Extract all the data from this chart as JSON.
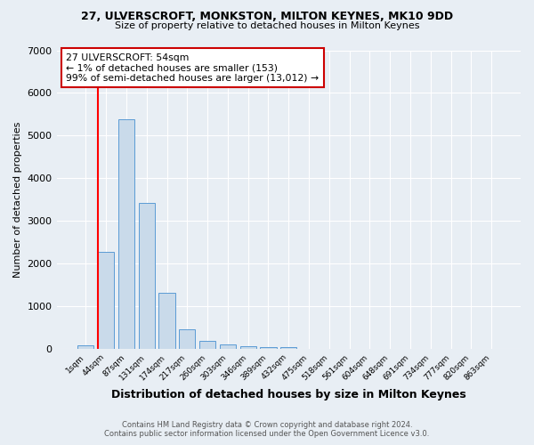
{
  "title1": "27, ULVERSCROFT, MONKSTON, MILTON KEYNES, MK10 9DD",
  "title2": "Size of property relative to detached houses in Milton Keynes",
  "xlabel": "Distribution of detached houses by size in Milton Keynes",
  "ylabel": "Number of detached properties",
  "categories": [
    "1sqm",
    "44sqm",
    "87sqm",
    "131sqm",
    "174sqm",
    "217sqm",
    "260sqm",
    "303sqm",
    "346sqm",
    "389sqm",
    "432sqm",
    "475sqm",
    "518sqm",
    "561sqm",
    "604sqm",
    "648sqm",
    "691sqm",
    "734sqm",
    "777sqm",
    "820sqm",
    "863sqm"
  ],
  "values": [
    70,
    2280,
    5380,
    3420,
    1310,
    460,
    185,
    90,
    65,
    35,
    35,
    0,
    0,
    0,
    0,
    0,
    0,
    0,
    0,
    0,
    0
  ],
  "bar_color": "#c9daea",
  "bar_edge_color": "#5b9bd5",
  "annotation_title": "27 ULVERSCROFT: 54sqm",
  "annotation_line1": "← 1% of detached houses are smaller (153)",
  "annotation_line2": "99% of semi-detached houses are larger (13,012) →",
  "annotation_box_color": "#ffffff",
  "annotation_box_edge": "#cc0000",
  "red_line_x": 0.6,
  "footer1": "Contains HM Land Registry data © Crown copyright and database right 2024.",
  "footer2": "Contains public sector information licensed under the Open Government Licence v3.0.",
  "ylim": [
    0,
    7000
  ],
  "background_color": "#e8eef4",
  "plot_bg_color": "#e8eef4"
}
